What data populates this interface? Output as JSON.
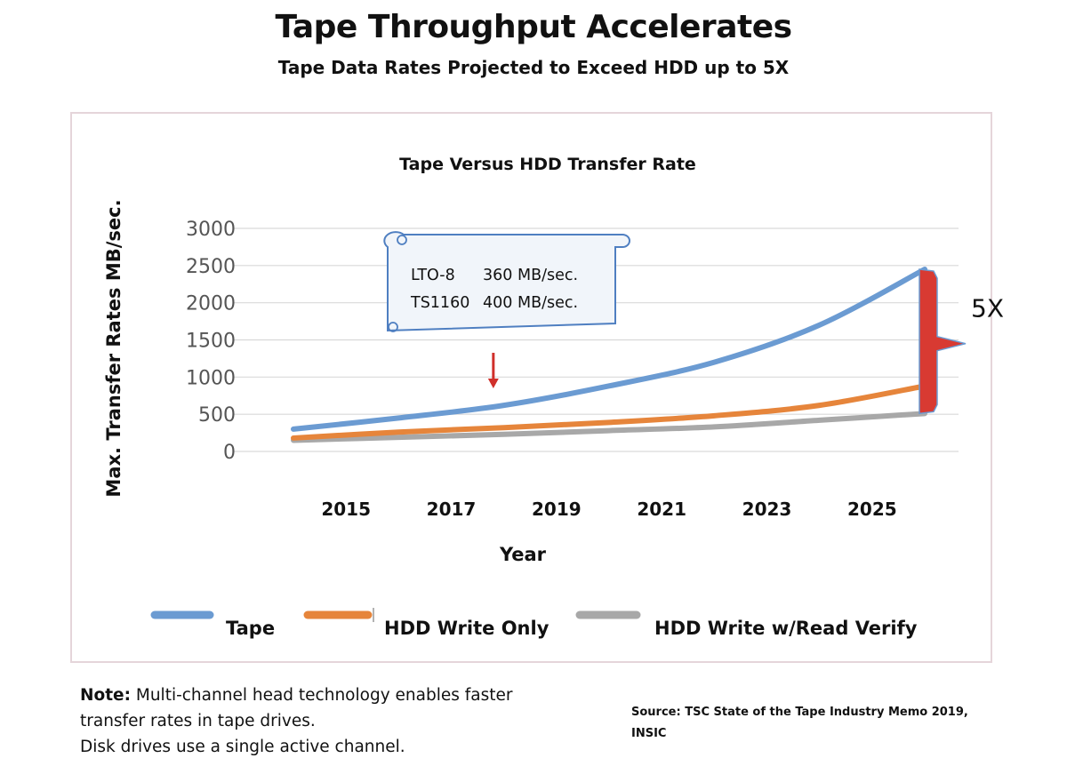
{
  "title": "Tape Throughput Accelerates",
  "subtitle": "Tape Data Rates Projected to Exceed HDD up to 5X",
  "chart_data": {
    "type": "line",
    "title": "Tape Versus HDD Transfer Rate",
    "xlabel": "Year",
    "ylabel": "Max. Transfer Rates MB/sec.",
    "ylim": [
      0,
      3000
    ],
    "yticks": [
      "0",
      "500",
      "1000",
      "1500",
      "2000",
      "2500",
      "3000"
    ],
    "xlim": [
      2014,
      2026
    ],
    "xticks": [
      "2015",
      "2017",
      "2019",
      "2021",
      "2023",
      "2025"
    ],
    "grid": true,
    "legend": "bottom",
    "series": [
      {
        "name": "Tape",
        "color": "#6b9bd2",
        "x": [
          2014,
          2016,
          2018,
          2020,
          2022,
          2024,
          2026
        ],
        "y": [
          300,
          450,
          620,
          880,
          1200,
          1700,
          2450
        ]
      },
      {
        "name": "HDD Write Only",
        "color": "#e6853b",
        "x": [
          2014,
          2016,
          2018,
          2020,
          2022,
          2024,
          2026
        ],
        "y": [
          180,
          260,
          320,
          390,
          480,
          620,
          880
        ]
      },
      {
        "name": "HDD Write w/Read Verify",
        "color": "#a8a8a8",
        "x": [
          2014,
          2016,
          2018,
          2020,
          2022,
          2024,
          2026
        ],
        "y": [
          150,
          190,
          230,
          280,
          330,
          420,
          510
        ]
      }
    ],
    "annotations": {
      "callout_line1_name": "LTO-8",
      "callout_line1_value": "360 MB/sec.",
      "callout_line2_name": "TS1160",
      "callout_line2_value": "400 MB/sec.",
      "arrow_year": 2017.8,
      "arrow_color": "#d0302b",
      "gap_label": "5X",
      "gap_color": "#d83a32"
    }
  },
  "note": {
    "label": "Note:",
    "text1": " Multi-channel head technology enables faster",
    "text2": "transfer rates in tape drives.",
    "text3": "Disk drives use a single active channel."
  },
  "source": {
    "line1": "Source: TSC State of the Tape Industry Memo 2019,",
    "line2": "INSIC"
  }
}
